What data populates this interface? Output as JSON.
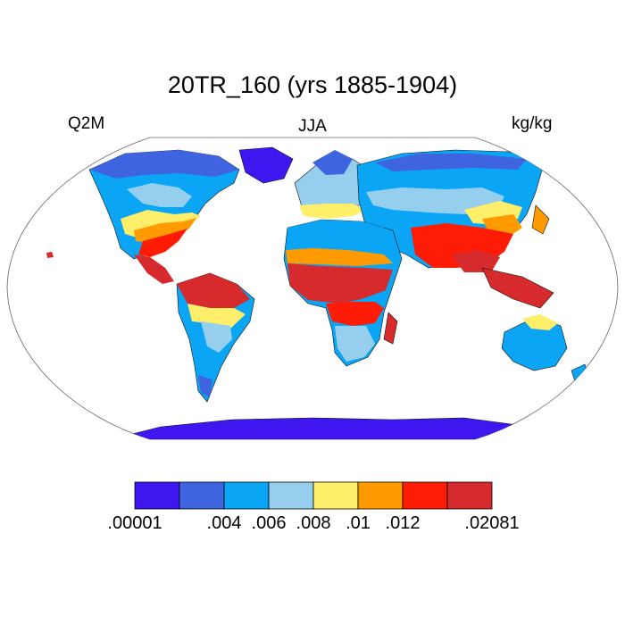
{
  "title": "20TR_160 (yrs 1885-1904)",
  "left_label": "Q2M",
  "center_label": "JJA",
  "right_label": "kg/kg",
  "colorbar": {
    "colors": [
      "#4016f0",
      "#3e64e0",
      "#0aa6f5",
      "#96ceee",
      "#ffee6a",
      "#ff9a00",
      "#ff1c06",
      "#d62a2c"
    ],
    "labels": [
      ".00001",
      ".004",
      ".006",
      ".008",
      ".01",
      ".012",
      ".02081"
    ],
    "label_boundaries": [
      0,
      2,
      3,
      4,
      5,
      6,
      8
    ]
  },
  "map": {
    "projection": "robinson",
    "ocean_color": "#ffffff",
    "land_colors": {
      "polar": "#4016f0",
      "cold": "#3e64e0",
      "cool": "#0aa6f5",
      "mild": "#96ceee",
      "warm": "#ffee6a",
      "warmer": "#ff9a00",
      "hot": "#ff1c06",
      "humid": "#d62a2c"
    }
  }
}
